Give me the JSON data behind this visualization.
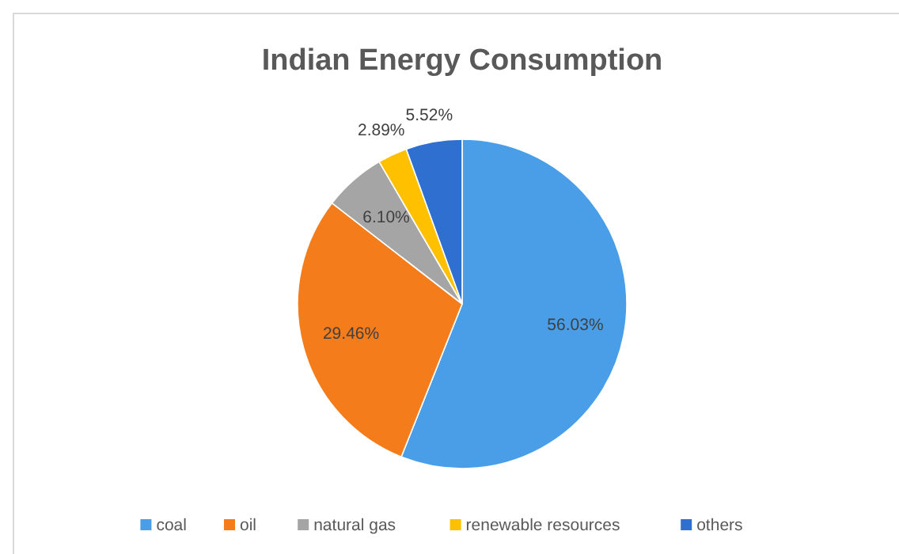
{
  "chart_data": {
    "type": "pie",
    "title": "Indian Energy Consumption",
    "categories": [
      "coal",
      "oil",
      "natural gas",
      "renewable resources",
      "others"
    ],
    "values": [
      56.03,
      29.46,
      6.1,
      2.89,
      5.52
    ],
    "value_labels": [
      "56.03%",
      "29.46%",
      "6.10%",
      "2.89%",
      "5.52%"
    ],
    "colors": [
      "#4a9ee8",
      "#f57c1a",
      "#a5a5a5",
      "#ffc000",
      "#2f6fd0"
    ],
    "legend": "bottom"
  }
}
